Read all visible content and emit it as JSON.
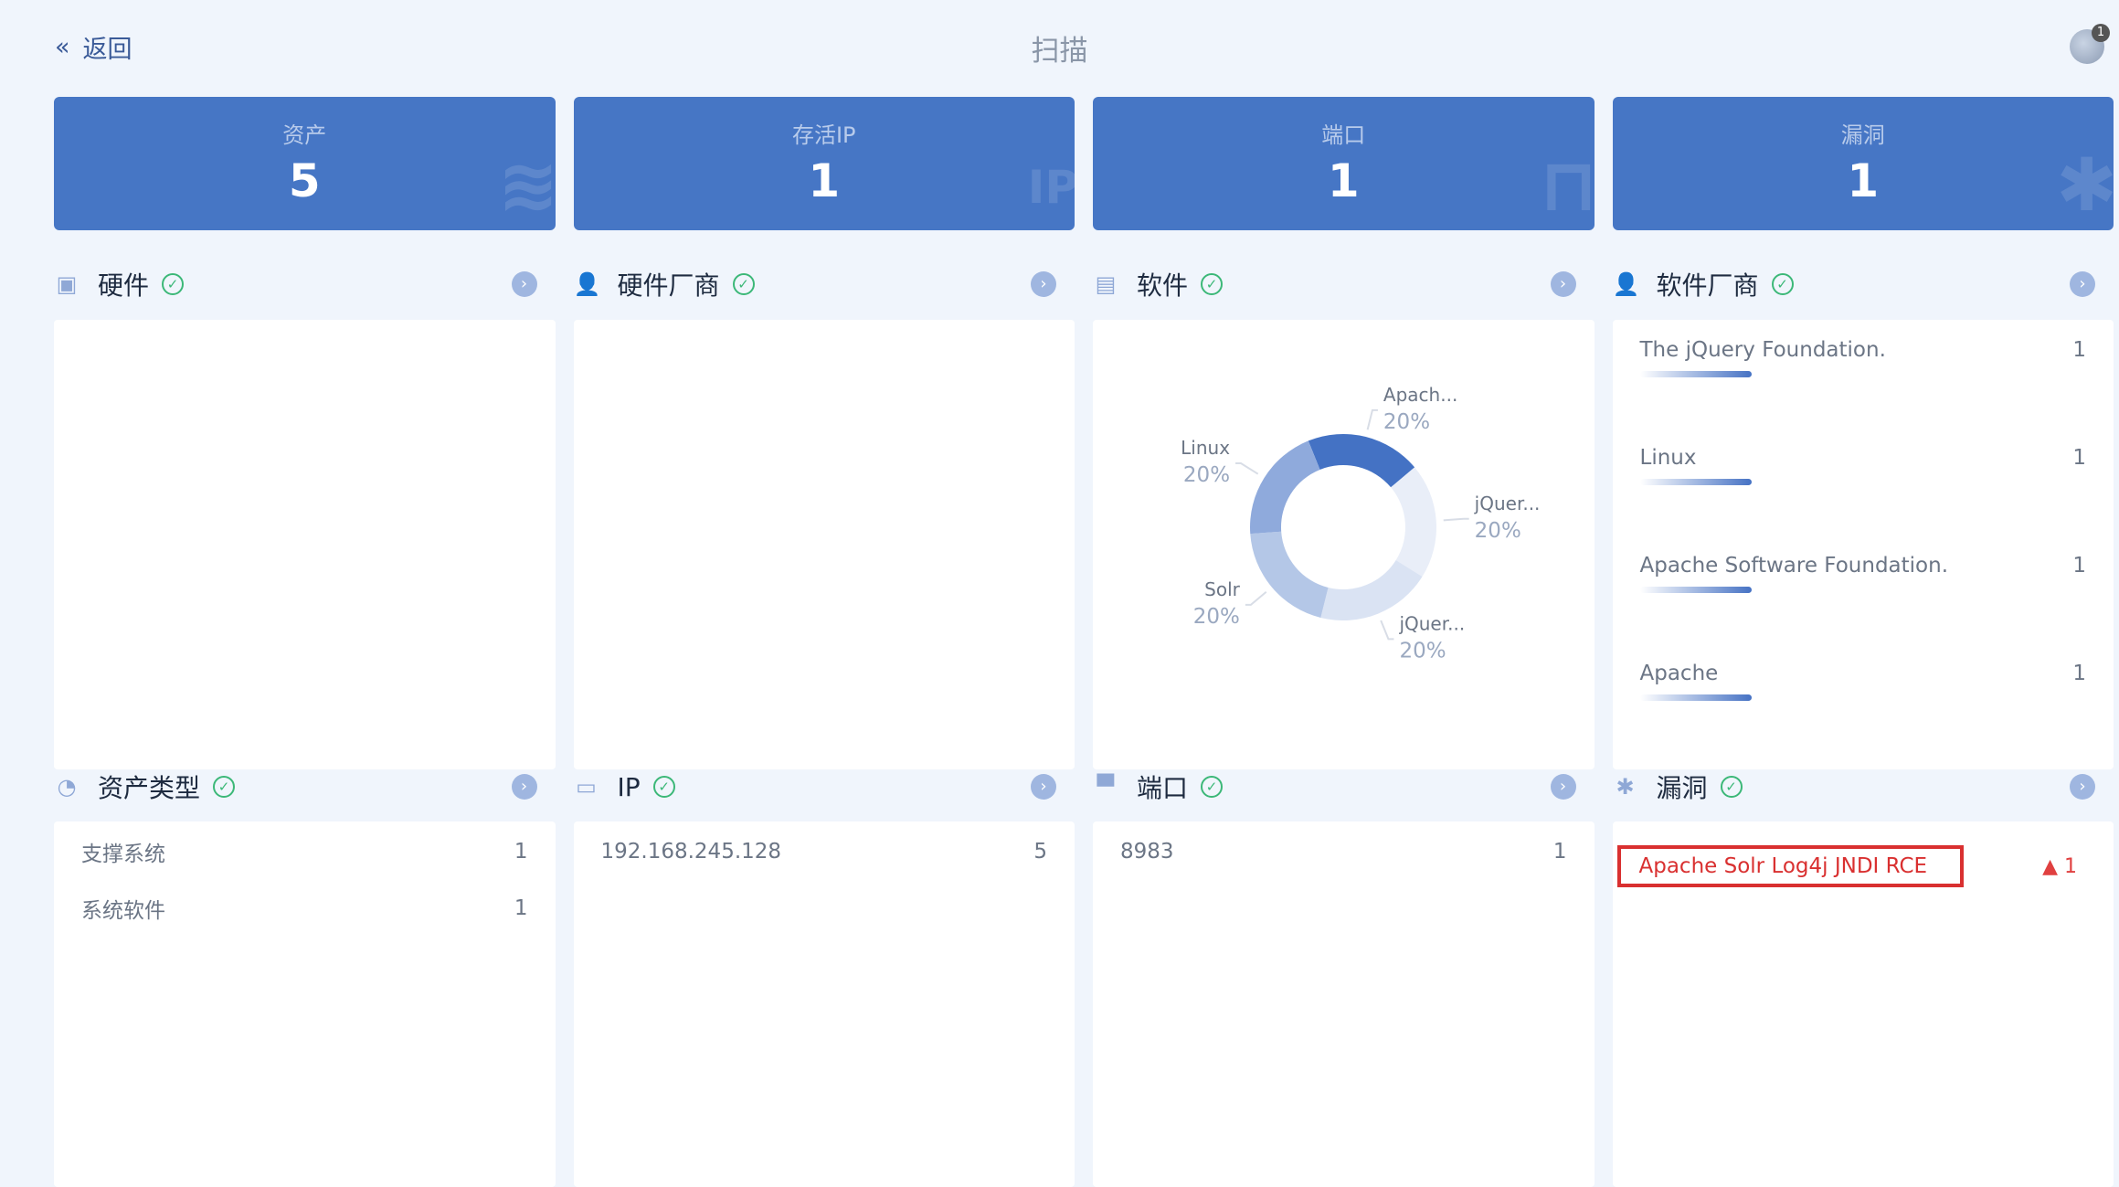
{
  "header": {
    "back_label": "返回",
    "title": "扫描",
    "notification_count": "1"
  },
  "stats": [
    {
      "label": "资产",
      "value": "5",
      "icon": "layers-icon"
    },
    {
      "label": "存活IP",
      "value": "1",
      "icon": "ip-pin-icon"
    },
    {
      "label": "端口",
      "value": "1",
      "icon": "port-icon"
    },
    {
      "label": "漏洞",
      "value": "1",
      "icon": "bug-icon"
    }
  ],
  "sections": {
    "hardware": {
      "title": "硬件"
    },
    "hardware_vendor": {
      "title": "硬件厂商"
    },
    "software": {
      "title": "软件"
    },
    "software_vendor": {
      "title": "软件厂商",
      "items": [
        {
          "name": "The jQuery Foundation.",
          "count": "1"
        },
        {
          "name": "Linux",
          "count": "1"
        },
        {
          "name": "Apache Software Foundation.",
          "count": "1"
        },
        {
          "name": "Apache",
          "count": "1"
        }
      ]
    },
    "asset_type": {
      "title": "资产类型",
      "items": [
        {
          "name": "支撑系统",
          "count": "1"
        },
        {
          "name": "系统软件",
          "count": "1"
        }
      ]
    },
    "ip": {
      "title": "IP",
      "items": [
        {
          "name": "192.168.245.128",
          "count": "5"
        }
      ]
    },
    "port": {
      "title": "端口",
      "items": [
        {
          "name": "8983",
          "count": "1"
        }
      ]
    },
    "vuln": {
      "title": "漏洞",
      "items": [
        {
          "name": "Apache Solr Log4j JNDI RCE",
          "count": "1"
        }
      ]
    }
  },
  "chart_data": {
    "type": "pie",
    "donut": true,
    "slices": [
      {
        "label": "Apach...",
        "percent": "20%",
        "value": 20,
        "color": "#4472c4"
      },
      {
        "label": "jQuer...",
        "percent": "20%",
        "value": 20,
        "color": "#e9eef8"
      },
      {
        "label": "jQuer...",
        "percent": "20%",
        "value": 20,
        "color": "#dae3f3"
      },
      {
        "label": "Solr",
        "percent": "20%",
        "value": 20,
        "color": "#b4c7e7"
      },
      {
        "label": "Linux",
        "percent": "20%",
        "value": 20,
        "color": "#8faadc"
      }
    ]
  }
}
